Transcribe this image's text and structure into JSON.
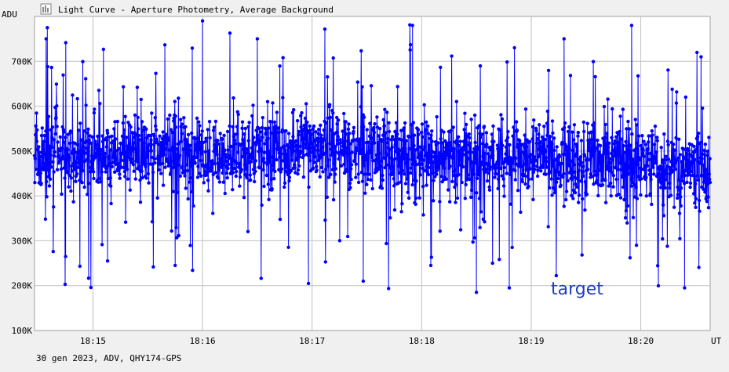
{
  "window": {
    "title": "Light Curve - Aperture Photometry, Average Background",
    "icon": "chart-window-icon"
  },
  "footer": {
    "info": "30 gen 2023, ADV, QHY174-GPS"
  },
  "annotation": {
    "text": "target"
  },
  "colors": {
    "series": "#0000ff",
    "grid": "#c0c0c0",
    "plot_bg": "#ffffff",
    "background": "#f0f0f0",
    "annotation": "#1f3fbf"
  },
  "chart_data": {
    "type": "line",
    "title": "Light Curve - Aperture Photometry, Average Background",
    "ylabel": "ADU",
    "xlabel": "UT",
    "ylim": [
      100000,
      800000
    ],
    "xlim": [
      "18:14:28",
      "18:20:38"
    ],
    "y_ticks": [
      100000,
      200000,
      300000,
      400000,
      500000,
      600000,
      700000
    ],
    "y_tick_labels": [
      "100K",
      "200K",
      "300K",
      "400K",
      "500K",
      "600K",
      "700K"
    ],
    "x_ticks": [
      "18:15",
      "18:16",
      "18:17",
      "18:18",
      "18:19",
      "18:20"
    ],
    "grid": true,
    "legend": "none",
    "series": [
      {
        "markers": "filled-circle",
        "frames_approx": 2100,
        "baseline_trend": {
          "x": [
            "18:14:28",
            "18:17:00",
            "18:20:38"
          ],
          "y": [
            490000,
            500000,
            465000
          ]
        },
        "scatter_range": [
          185000,
          790000
        ],
        "sample_points": {
          "x": [
            "18:14:35",
            "18:14:45",
            "18:15:08",
            "18:15:45",
            "18:16:00",
            "18:16:30",
            "18:16:58",
            "18:17:28",
            "18:17:55",
            "18:18:30",
            "18:18:48",
            "18:19:18",
            "18:19:55",
            "18:20:24",
            "18:20:33"
          ],
          "y": [
            775000,
            265000,
            255000,
            245000,
            790000,
            750000,
            205000,
            210000,
            780000,
            185000,
            195000,
            750000,
            780000,
            195000,
            710000
          ]
        }
      }
    ]
  }
}
